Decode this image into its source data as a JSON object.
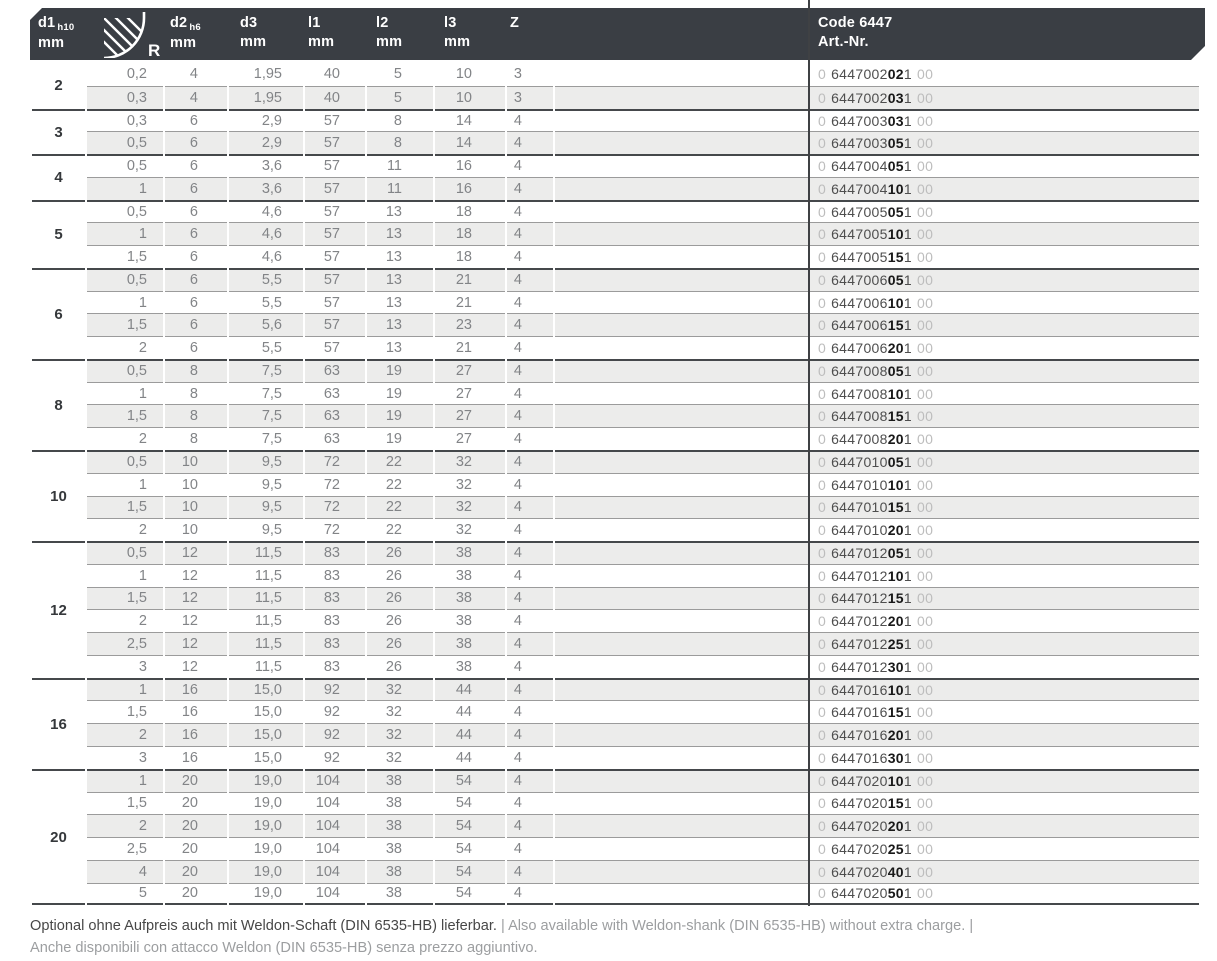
{
  "colors": {
    "band": "#3a3e44",
    "stripe": "#ececeb",
    "rule_thick": "#45484b",
    "rule_thin": "#9b9b9b",
    "art_bold": "#181818",
    "art_light": "#bdbdbd"
  },
  "table": {
    "columns": [
      {
        "key": "d1",
        "label": "d1",
        "sub": "h10",
        "unit": "mm"
      },
      {
        "key": "r",
        "icon": "corner-radius-icon",
        "label": "R"
      },
      {
        "key": "d2",
        "label": "d2",
        "sub": "h6",
        "unit": "mm"
      },
      {
        "key": "d3",
        "label": "d3",
        "unit": "mm"
      },
      {
        "key": "l1",
        "label": "l1",
        "unit": "mm"
      },
      {
        "key": "l2",
        "label": "l2",
        "unit": "mm"
      },
      {
        "key": "l3",
        "label": "l3",
        "unit": "mm"
      },
      {
        "key": "z",
        "label": "Z"
      },
      {
        "key": "code",
        "label": "Code 6447",
        "label2": "Art.-Nr."
      }
    ],
    "art_lead": "0",
    "art_post": "1",
    "art_trail": "00",
    "groups": [
      {
        "d1": "2",
        "art_pre": "6447002",
        "rows": [
          {
            "r": "0,2",
            "d2": "4",
            "d3": "1,95",
            "l1": "40",
            "l2": "5",
            "l3": "10",
            "z": "3",
            "rb": "02"
          },
          {
            "r": "0,3",
            "d2": "4",
            "d3": "1,95",
            "l1": "40",
            "l2": "5",
            "l3": "10",
            "z": "3",
            "rb": "03"
          }
        ]
      },
      {
        "d1": "3",
        "art_pre": "6447003",
        "rows": [
          {
            "r": "0,3",
            "d2": "6",
            "d3": "2,9",
            "l1": "57",
            "l2": "8",
            "l3": "14",
            "z": "4",
            "rb": "03"
          },
          {
            "r": "0,5",
            "d2": "6",
            "d3": "2,9",
            "l1": "57",
            "l2": "8",
            "l3": "14",
            "z": "4",
            "rb": "05"
          }
        ]
      },
      {
        "d1": "4",
        "art_pre": "6447004",
        "rows": [
          {
            "r": "0,5",
            "d2": "6",
            "d3": "3,6",
            "l1": "57",
            "l2": "11",
            "l3": "16",
            "z": "4",
            "rb": "05"
          },
          {
            "r": "1",
            "d2": "6",
            "d3": "3,6",
            "l1": "57",
            "l2": "11",
            "l3": "16",
            "z": "4",
            "rb": "10"
          }
        ]
      },
      {
        "d1": "5",
        "art_pre": "6447005",
        "rows": [
          {
            "r": "0,5",
            "d2": "6",
            "d3": "4,6",
            "l1": "57",
            "l2": "13",
            "l3": "18",
            "z": "4",
            "rb": "05"
          },
          {
            "r": "1",
            "d2": "6",
            "d3": "4,6",
            "l1": "57",
            "l2": "13",
            "l3": "18",
            "z": "4",
            "rb": "10"
          },
          {
            "r": "1,5",
            "d2": "6",
            "d3": "4,6",
            "l1": "57",
            "l2": "13",
            "l3": "18",
            "z": "4",
            "rb": "15"
          }
        ]
      },
      {
        "d1": "6",
        "art_pre": "6447006",
        "rows": [
          {
            "r": "0,5",
            "d2": "6",
            "d3": "5,5",
            "l1": "57",
            "l2": "13",
            "l3": "21",
            "z": "4",
            "rb": "05"
          },
          {
            "r": "1",
            "d2": "6",
            "d3": "5,5",
            "l1": "57",
            "l2": "13",
            "l3": "21",
            "z": "4",
            "rb": "10"
          },
          {
            "r": "1,5",
            "d2": "6",
            "d3": "5,6",
            "l1": "57",
            "l2": "13",
            "l3": "23",
            "z": "4",
            "rb": "15"
          },
          {
            "r": "2",
            "d2": "6",
            "d3": "5,5",
            "l1": "57",
            "l2": "13",
            "l3": "21",
            "z": "4",
            "rb": "20"
          }
        ]
      },
      {
        "d1": "8",
        "art_pre": "6447008",
        "rows": [
          {
            "r": "0,5",
            "d2": "8",
            "d3": "7,5",
            "l1": "63",
            "l2": "19",
            "l3": "27",
            "z": "4",
            "rb": "05"
          },
          {
            "r": "1",
            "d2": "8",
            "d3": "7,5",
            "l1": "63",
            "l2": "19",
            "l3": "27",
            "z": "4",
            "rb": "10"
          },
          {
            "r": "1,5",
            "d2": "8",
            "d3": "7,5",
            "l1": "63",
            "l2": "19",
            "l3": "27",
            "z": "4",
            "rb": "15"
          },
          {
            "r": "2",
            "d2": "8",
            "d3": "7,5",
            "l1": "63",
            "l2": "19",
            "l3": "27",
            "z": "4",
            "rb": "20"
          }
        ]
      },
      {
        "d1": "10",
        "art_pre": "6447010",
        "rows": [
          {
            "r": "0,5",
            "d2": "10",
            "d3": "9,5",
            "l1": "72",
            "l2": "22",
            "l3": "32",
            "z": "4",
            "rb": "05"
          },
          {
            "r": "1",
            "d2": "10",
            "d3": "9,5",
            "l1": "72",
            "l2": "22",
            "l3": "32",
            "z": "4",
            "rb": "10"
          },
          {
            "r": "1,5",
            "d2": "10",
            "d3": "9,5",
            "l1": "72",
            "l2": "22",
            "l3": "32",
            "z": "4",
            "rb": "15"
          },
          {
            "r": "2",
            "d2": "10",
            "d3": "9,5",
            "l1": "72",
            "l2": "22",
            "l3": "32",
            "z": "4",
            "rb": "20"
          }
        ]
      },
      {
        "d1": "12",
        "art_pre": "6447012",
        "rows": [
          {
            "r": "0,5",
            "d2": "12",
            "d3": "11,5",
            "l1": "83",
            "l2": "26",
            "l3": "38",
            "z": "4",
            "rb": "05"
          },
          {
            "r": "1",
            "d2": "12",
            "d3": "11,5",
            "l1": "83",
            "l2": "26",
            "l3": "38",
            "z": "4",
            "rb": "10"
          },
          {
            "r": "1,5",
            "d2": "12",
            "d3": "11,5",
            "l1": "83",
            "l2": "26",
            "l3": "38",
            "z": "4",
            "rb": "15"
          },
          {
            "r": "2",
            "d2": "12",
            "d3": "11,5",
            "l1": "83",
            "l2": "26",
            "l3": "38",
            "z": "4",
            "rb": "20"
          },
          {
            "r": "2,5",
            "d2": "12",
            "d3": "11,5",
            "l1": "83",
            "l2": "26",
            "l3": "38",
            "z": "4",
            "rb": "25"
          },
          {
            "r": "3",
            "d2": "12",
            "d3": "11,5",
            "l1": "83",
            "l2": "26",
            "l3": "38",
            "z": "4",
            "rb": "30"
          }
        ]
      },
      {
        "d1": "16",
        "art_pre": "6447016",
        "rows": [
          {
            "r": "1",
            "d2": "16",
            "d3": "15,0",
            "l1": "92",
            "l2": "32",
            "l3": "44",
            "z": "4",
            "rb": "10"
          },
          {
            "r": "1,5",
            "d2": "16",
            "d3": "15,0",
            "l1": "92",
            "l2": "32",
            "l3": "44",
            "z": "4",
            "rb": "15"
          },
          {
            "r": "2",
            "d2": "16",
            "d3": "15,0",
            "l1": "92",
            "l2": "32",
            "l3": "44",
            "z": "4",
            "rb": "20"
          },
          {
            "r": "3",
            "d2": "16",
            "d3": "15,0",
            "l1": "92",
            "l2": "32",
            "l3": "44",
            "z": "4",
            "rb": "30"
          }
        ]
      },
      {
        "d1": "20",
        "art_pre": "6447020",
        "rows": [
          {
            "r": "1",
            "d2": "20",
            "d3": "19,0",
            "l1": "104",
            "l2": "38",
            "l3": "54",
            "z": "4",
            "rb": "10"
          },
          {
            "r": "1,5",
            "d2": "20",
            "d3": "19,0",
            "l1": "104",
            "l2": "38",
            "l3": "54",
            "z": "4",
            "rb": "15"
          },
          {
            "r": "2",
            "d2": "20",
            "d3": "19,0",
            "l1": "104",
            "l2": "38",
            "l3": "54",
            "z": "4",
            "rb": "20"
          },
          {
            "r": "2,5",
            "d2": "20",
            "d3": "19,0",
            "l1": "104",
            "l2": "38",
            "l3": "54",
            "z": "4",
            "rb": "25"
          },
          {
            "r": "4",
            "d2": "20",
            "d3": "19,0",
            "l1": "104",
            "l2": "38",
            "l3": "54",
            "z": "4",
            "rb": "40"
          },
          {
            "r": "5",
            "d2": "20",
            "d3": "19,0",
            "l1": "104",
            "l2": "38",
            "l3": "54",
            "z": "4",
            "rb": "50"
          }
        ]
      }
    ]
  },
  "footer": {
    "line1_dark": "Optional ohne Aufpreis auch mit Weldon-Schaft (DIN 6535-HB) lieferbar.",
    "line1_light": " | Also available with Weldon-shank (DIN 6535-HB) without extra charge. |",
    "line2": "Anche disponibili con attacco Weldon (DIN 6535-HB) senza prezzo aggiuntivo."
  }
}
